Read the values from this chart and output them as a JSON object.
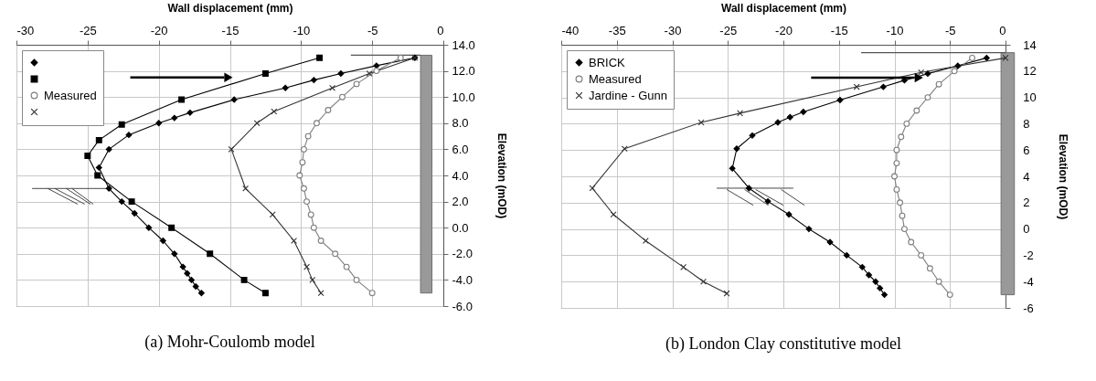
{
  "chart_data": [
    {
      "type": "line",
      "xlabel": "Wall displacement (mm)",
      "ylabel": "Elevation (mOD)",
      "annotations": [
        "(a)  Mohr-Coulomb model"
      ],
      "xlim": [
        -30,
        0
      ],
      "xticks": [
        -30,
        -25,
        -20,
        -15,
        -10,
        -5,
        0
      ],
      "ylim": [
        -6,
        14
      ],
      "yticks": [
        {
          "value": -6,
          "label": "-6.0"
        },
        {
          "value": -4,
          "label": "-4.0"
        },
        {
          "value": -2,
          "label": "-2.0"
        },
        {
          "value": 0,
          "label": "0.0"
        },
        {
          "value": 2,
          "label": "2.0"
        },
        {
          "value": 4,
          "label": "4.0"
        },
        {
          "value": 6,
          "label": "6.0"
        },
        {
          "value": 8,
          "label": "8.0"
        },
        {
          "value": 10,
          "label": "10.0"
        },
        {
          "value": 12,
          "label": "12.0"
        },
        {
          "value": 14,
          "label": "14.0"
        }
      ],
      "grid": true,
      "legend": "top left",
      "series": [
        {
          "color": "#000000",
          "marker": "diamond",
          "x": [
            -2.0,
            -4.7,
            -7.2,
            -9.1,
            -11.1,
            -14.7,
            -17.8,
            -18.9,
            -20.0,
            -22.1,
            -23.5,
            -24.2,
            -23.5,
            -22.6,
            -21.7,
            -20.7,
            -19.7,
            -18.9,
            -18.3,
            -18.0,
            -17.7,
            -17.4,
            -17.0
          ],
          "values": [
            13.0,
            12.4,
            11.8,
            11.3,
            10.7,
            9.8,
            8.8,
            8.4,
            8.0,
            7.1,
            6.0,
            4.6,
            3.0,
            2.0,
            1.1,
            0.0,
            -1.0,
            -2.0,
            -3.0,
            -3.5,
            -4.0,
            -4.5,
            -5.0
          ]
        },
        {
          "color": "#000000",
          "marker": "square",
          "x": [
            -8.7,
            -12.5,
            -18.4,
            -22.6,
            -24.2,
            -25.0,
            -24.3,
            -21.9,
            -19.1,
            -16.4,
            -14.0,
            -12.5
          ],
          "values": [
            13.0,
            11.8,
            9.8,
            7.9,
            6.7,
            5.5,
            4.0,
            2.0,
            0.0,
            -2.0,
            -4.0,
            -5.0
          ]
        },
        {
          "name": "Measured",
          "color": "#7f7f7f",
          "marker": "circle",
          "x": [
            -3.0,
            -4.7,
            -6.1,
            -7.1,
            -8.1,
            -8.9,
            -9.5,
            -9.8,
            -9.9,
            -10.1,
            -9.8,
            -9.6,
            -9.3,
            -9.1,
            -8.6,
            -7.6,
            -6.8,
            -6.1,
            -5.0
          ],
          "values": [
            13,
            12,
            11,
            10,
            9,
            8,
            7,
            6,
            5,
            4,
            3,
            2,
            1,
            0,
            -1,
            -2,
            -3,
            -4,
            -5
          ]
        },
        {
          "color": "#333333",
          "marker": "cross",
          "x": [
            -2.0,
            -5.2,
            -7.8,
            -11.9,
            -13.1,
            -14.9,
            -13.9,
            -12.0,
            -10.5,
            -9.6,
            -9.2,
            -8.6
          ],
          "values": [
            13.0,
            11.8,
            10.7,
            8.9,
            8.0,
            6.0,
            3.0,
            1.0,
            -1.0,
            -3.0,
            -4.0,
            -5.0
          ]
        }
      ]
    },
    {
      "type": "line",
      "xlabel": "Wall displacement (mm)",
      "ylabel": "Elevation (mOD)",
      "annotations": [
        "(b)  London Clay constitutive model"
      ],
      "xlim": [
        -40,
        0
      ],
      "xticks": [
        -40,
        -35,
        -30,
        -25,
        -20,
        -15,
        -10,
        -5,
        0
      ],
      "ylim": [
        -6,
        14
      ],
      "yticks": [
        -6,
        -4,
        -2,
        0,
        2,
        4,
        6,
        8,
        10,
        12,
        14
      ],
      "grid": true,
      "legend": "top left",
      "series": [
        {
          "name": "BRICK",
          "color": "#000000",
          "marker": "diamond",
          "x": [
            -1.7,
            -4.3,
            -7.0,
            -9.1,
            -11.0,
            -14.9,
            -18.2,
            -19.4,
            -20.5,
            -22.8,
            -24.2,
            -24.6,
            -23.1,
            -21.4,
            -19.5,
            -17.7,
            -15.8,
            -14.3,
            -12.9,
            -12.3,
            -11.7,
            -11.3,
            -10.9
          ],
          "values": [
            13.0,
            12.4,
            11.8,
            11.3,
            10.8,
            9.8,
            8.9,
            8.5,
            8.1,
            7.1,
            6.1,
            4.6,
            3.1,
            2.1,
            1.1,
            0.0,
            -1.0,
            -2.0,
            -2.9,
            -3.5,
            -4.0,
            -4.5,
            -5.0
          ]
        },
        {
          "name": "Measured",
          "color": "#7f7f7f",
          "marker": "circle",
          "x": [
            -3.0,
            -4.6,
            -6.0,
            -7.0,
            -8.0,
            -8.9,
            -9.4,
            -9.8,
            -9.8,
            -10.0,
            -9.8,
            -9.5,
            -9.3,
            -9.1,
            -8.5,
            -7.6,
            -6.8,
            -6.0,
            -5.0
          ],
          "values": [
            13,
            12,
            11,
            10,
            9,
            8,
            7,
            6,
            5,
            4,
            3,
            2,
            1,
            0,
            -1,
            -2,
            -3,
            -4,
            -5
          ]
        },
        {
          "name": "Jardine - Gunn",
          "color": "#333333",
          "marker": "cross",
          "x": [
            0.0,
            -7.6,
            -13.4,
            -23.9,
            -27.4,
            -34.3,
            -37.2,
            -35.3,
            -32.4,
            -29.0,
            -27.2,
            -25.1
          ],
          "values": [
            13.0,
            11.9,
            10.8,
            8.8,
            8.1,
            6.1,
            3.1,
            1.1,
            -0.9,
            -2.9,
            -4.0,
            -4.9
          ]
        }
      ]
    }
  ]
}
